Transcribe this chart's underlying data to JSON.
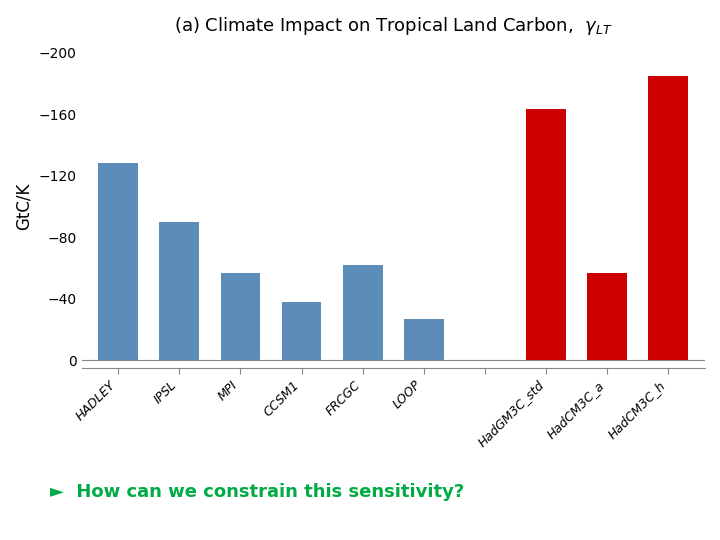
{
  "categories": [
    "HADLEY",
    "IPSL",
    "MPI",
    "CCSM1",
    "FRCGC",
    "LOOP",
    "",
    "HadGM3C_std",
    "HadCM3C_a",
    "HadCM3C_h"
  ],
  "values": [
    -128,
    -90,
    -57,
    -38,
    -62,
    -27,
    null,
    -163,
    -57,
    -185
  ],
  "colors": [
    "#5B8DB8",
    "#5B8DB8",
    "#5B8DB8",
    "#5B8DB8",
    "#5B8DB8",
    "#5B8DB8",
    null,
    "#CC0000",
    "#CC0000",
    "#CC0000"
  ],
  "title": "(a) Climate Impact on Tropical Land Carbon,  ",
  "gamma_label": "$\\gamma_{LT}$",
  "ylabel": "GtC/K",
  "ylim": [
    -205,
    5
  ],
  "yticks": [
    -200,
    -160,
    -120,
    -80,
    -40,
    0
  ],
  "annotation_text": "►  How can we constrain this sensitivity?",
  "annotation_color": "#00AA44",
  "background_color": "#FFFFFF",
  "figsize": [
    7.2,
    5.4
  ],
  "dpi": 100,
  "bar_width": 0.65
}
